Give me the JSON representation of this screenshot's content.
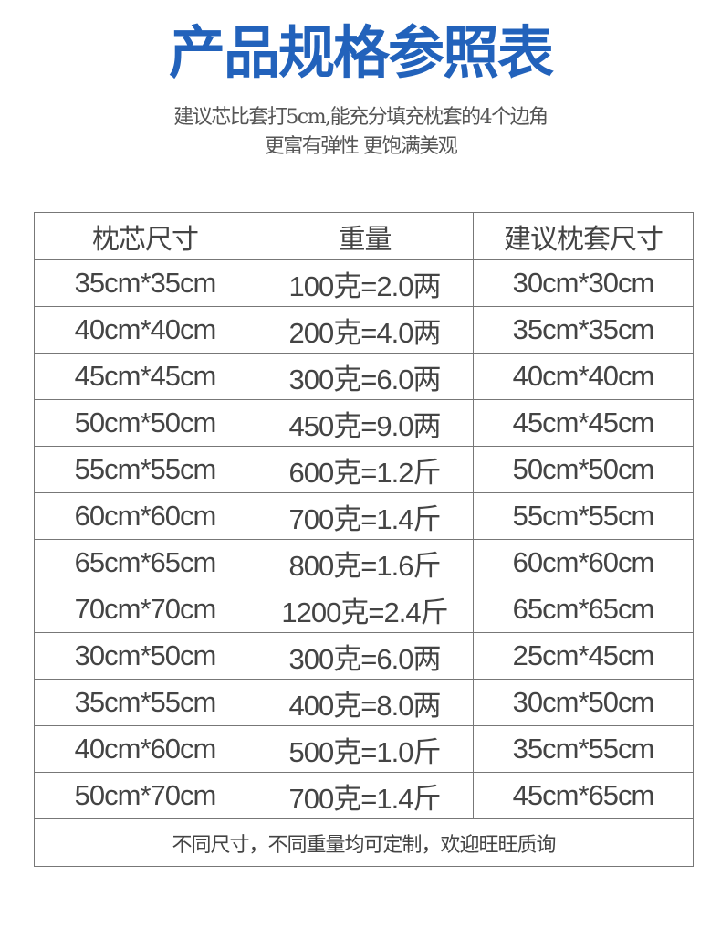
{
  "title": "产品规格参照表",
  "subtitle_lines": [
    "建议芯比套打5cm,能充分填充枕套的4个边角",
    "更富有弹性 更饱满美观"
  ],
  "table": {
    "headers": [
      "枕芯尺寸",
      "重量",
      "建议枕套尺寸"
    ],
    "rows": [
      [
        "35cm*35cm",
        "100克=2.0两",
        "30cm*30cm"
      ],
      [
        "40cm*40cm",
        "200克=4.0两",
        "35cm*35cm"
      ],
      [
        "45cm*45cm",
        "300克=6.0两",
        "40cm*40cm"
      ],
      [
        "50cm*50cm",
        "450克=9.0两",
        "45cm*45cm"
      ],
      [
        "55cm*55cm",
        "600克=1.2斤",
        "50cm*50cm"
      ],
      [
        "60cm*60cm",
        "700克=1.4斤",
        "55cm*55cm"
      ],
      [
        "65cm*65cm",
        "800克=1.6斤",
        "60cm*60cm"
      ],
      [
        "70cm*70cm",
        "1200克=2.4斤",
        "65cm*65cm"
      ],
      [
        "30cm*50cm",
        "300克=6.0两",
        "25cm*45cm"
      ],
      [
        "35cm*55cm",
        "400克=8.0两",
        "30cm*50cm"
      ],
      [
        "40cm*60cm",
        "500克=1.0斤",
        "35cm*55cm"
      ],
      [
        "50cm*70cm",
        "700克=1.4斤",
        "45cm*65cm"
      ]
    ],
    "footer": "不同尺寸，不同重量均可定制，欢迎旺旺质询"
  },
  "colors": {
    "title": "#2262bb",
    "text": "#444444",
    "border": "#777777"
  }
}
